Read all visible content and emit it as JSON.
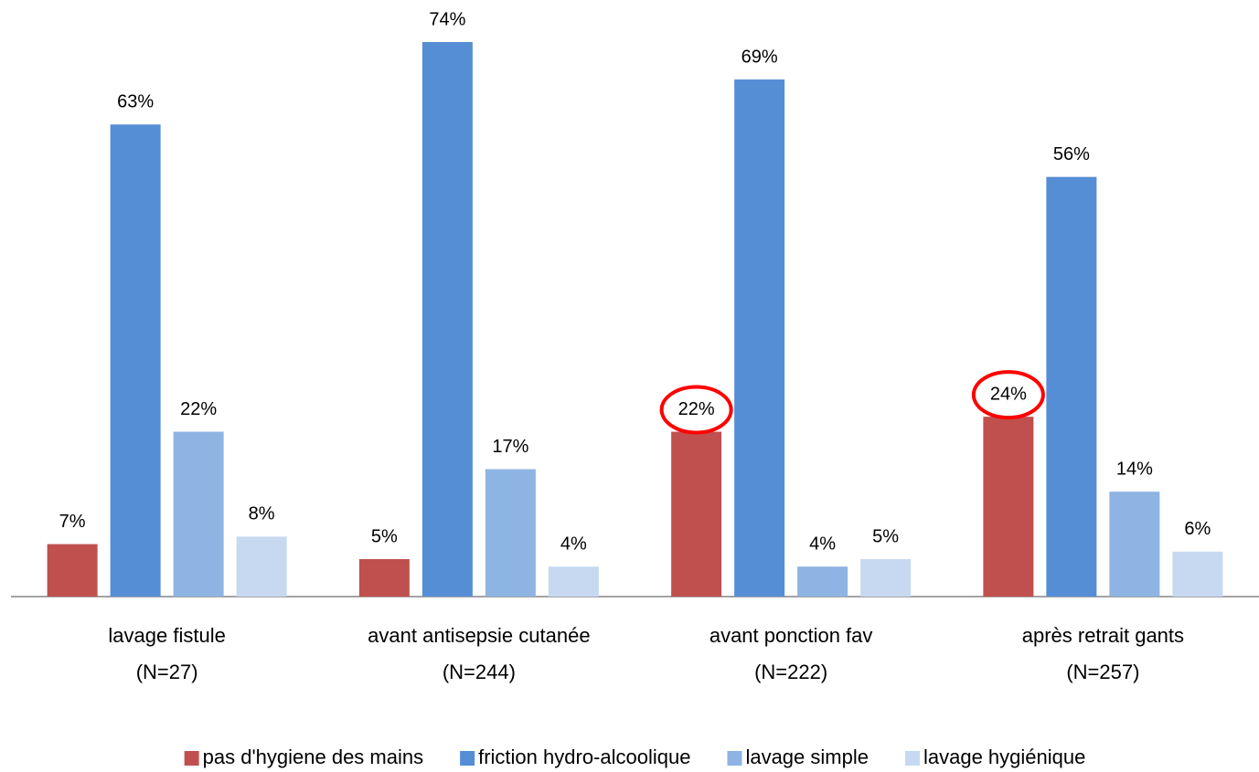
{
  "chart_data": {
    "type": "bar",
    "categories": [
      [
        "lavage fistule",
        "(N=27)"
      ],
      [
        "avant antisepsie cutanée",
        "(N=244)"
      ],
      [
        "avant ponction fav",
        "(N=222)"
      ],
      [
        "après retrait gants",
        "(N=257)"
      ]
    ],
    "series": [
      {
        "name": "pas d'hygiene des mains",
        "color": "#c0504d",
        "values": [
          7,
          5,
          22,
          24
        ],
        "value_labels": [
          "7%",
          "5%",
          "22%",
          "24%"
        ]
      },
      {
        "name": "friction hydro-alcoolique",
        "color": "#558ed5",
        "values": [
          63,
          74,
          69,
          56
        ],
        "value_labels": [
          "63%",
          "74%",
          "69%",
          "56%"
        ]
      },
      {
        "name": "lavage simple",
        "color": "#8eb4e3",
        "values": [
          22,
          17,
          4,
          14
        ],
        "value_labels": [
          "22%",
          "17%",
          "4%",
          "14%"
        ]
      },
      {
        "name": "lavage hygiénique",
        "color": "#c6d9f1",
        "values": [
          8,
          4,
          5,
          6
        ],
        "value_labels": [
          "8%",
          "4%",
          "5%",
          "6%"
        ]
      }
    ],
    "highlight": [
      {
        "series": 0,
        "category": 2,
        "color": "#ff0000"
      },
      {
        "series": 0,
        "category": 3,
        "color": "#ff0000"
      }
    ],
    "legend": "bottom"
  }
}
